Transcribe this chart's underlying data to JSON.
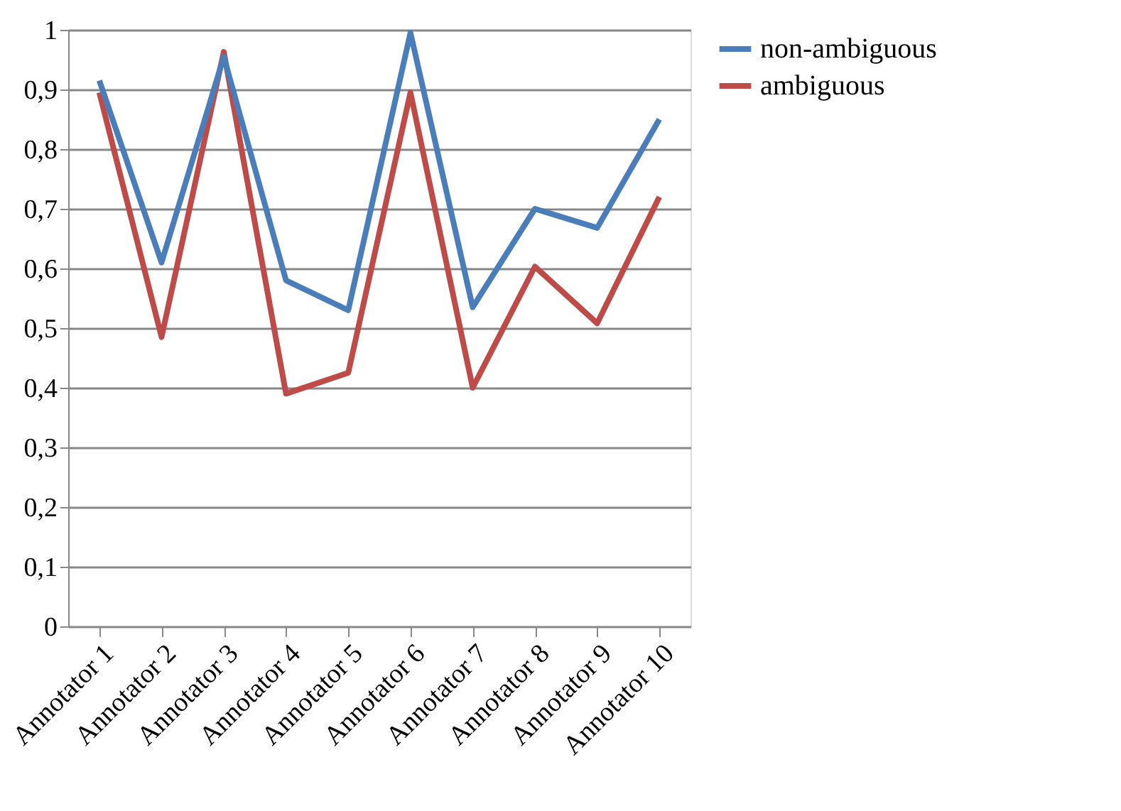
{
  "chart_data": {
    "type": "line",
    "categories": [
      "Annotator 1",
      "Annotator 2",
      "Annotator 3",
      "Annotator 4",
      "Annotator 5",
      "Annotator 6",
      "Annotator 7",
      "Annotator 8",
      "Annotator 9",
      "Annotator 10"
    ],
    "series": [
      {
        "name": "non-ambiguous",
        "color": "#4a7ebb",
        "values": [
          0.915,
          0.61,
          0.955,
          0.58,
          0.53,
          0.995,
          0.535,
          0.7,
          0.668,
          0.85
        ]
      },
      {
        "name": "ambiguous",
        "color": "#be4b48",
        "values": [
          0.895,
          0.485,
          0.963,
          0.39,
          0.425,
          0.895,
          0.4,
          0.603,
          0.508,
          0.72
        ]
      }
    ],
    "ylim": [
      0,
      1
    ],
    "yticks": [
      0,
      {
        "value": 0.1,
        "label": "0,1"
      },
      {
        "value": 0.2,
        "label": "0,2"
      },
      {
        "value": 0.3,
        "label": "0,3"
      },
      {
        "value": 0.4,
        "label": "0,4"
      },
      {
        "value": 0.5,
        "label": "0,5"
      },
      {
        "value": 0.6,
        "label": "0,6"
      },
      {
        "value": 0.7,
        "label": "0,7"
      },
      {
        "value": 0.8,
        "label": "0,8"
      },
      {
        "value": 0.9,
        "label": "0,9"
      },
      1
    ],
    "grid": "y",
    "legend": "right",
    "marker": "none",
    "line_style": "solid"
  }
}
